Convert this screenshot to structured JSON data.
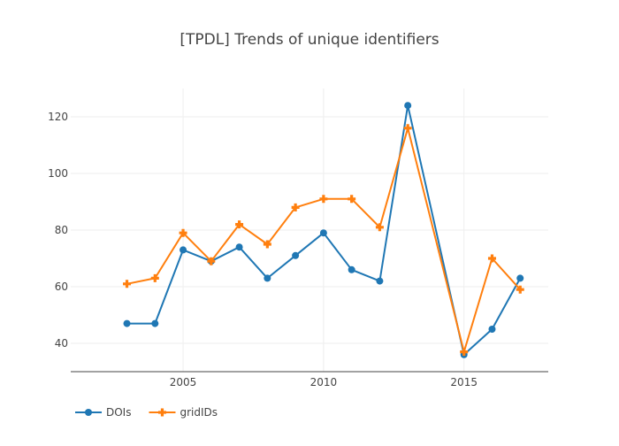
{
  "chart_data": {
    "type": "line",
    "title": "[TPDL] Trends of unique identifiers",
    "xlabel": "",
    "ylabel": "",
    "x": [
      2003,
      2004,
      2005,
      2006,
      2007,
      2008,
      2009,
      2010,
      2011,
      2012,
      2013,
      2015,
      2016,
      2017
    ],
    "xlim": [
      2001,
      2018
    ],
    "ylim": [
      30,
      130
    ],
    "x_ticks": [
      2005,
      2010,
      2015
    ],
    "y_ticks": [
      40,
      60,
      80,
      100,
      120
    ],
    "grid": true,
    "legend_position": "bottom-left",
    "series": [
      {
        "name": "DOIs",
        "color": "#1f77b4",
        "marker": "circle",
        "values": [
          47,
          47,
          73,
          69,
          74,
          63,
          71,
          79,
          66,
          62,
          124,
          36,
          45,
          63
        ]
      },
      {
        "name": "gridIDs",
        "color": "#ff7f0e",
        "marker": "cross",
        "values": [
          61,
          63,
          79,
          69,
          82,
          75,
          88,
          91,
          91,
          81,
          116,
          37,
          70,
          59
        ]
      }
    ]
  }
}
